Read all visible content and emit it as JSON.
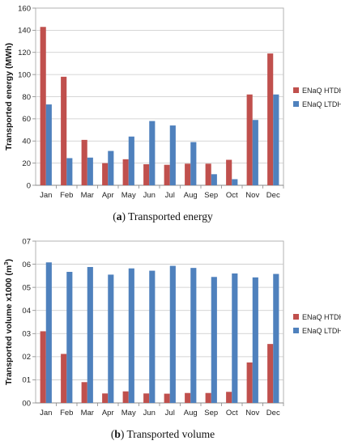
{
  "chart_data": [
    {
      "type": "bar",
      "caption_label": "a",
      "caption_text": "Transported energy",
      "ylabel": "Transported energy (MWh)",
      "ylim": [
        0,
        160
      ],
      "yticks": [
        "0",
        "20",
        "40",
        "60",
        "80",
        "100",
        "120",
        "140",
        "160"
      ],
      "categories": [
        "Jan",
        "Feb",
        "Mar",
        "Apr",
        "May",
        "Jun",
        "Jul",
        "Aug",
        "Sep",
        "Oct",
        "Nov",
        "Dec"
      ],
      "legend_position": "right",
      "grid": true,
      "series": [
        {
          "name": "ENaQ HTDH",
          "color": "#c0504d",
          "values": [
            143,
            98,
            41,
            20,
            23.5,
            19,
            18.5,
            19.5,
            19.5,
            23,
            82,
            119
          ]
        },
        {
          "name": "ENaQ LTDH",
          "color": "#4f81bd",
          "values": [
            73,
            24.5,
            25,
            31,
            44,
            58,
            54,
            39,
            10,
            5.5,
            59,
            82
          ]
        }
      ]
    },
    {
      "type": "bar",
      "caption_label": "b",
      "caption_text": "Transported volume",
      "ylabel": "Transported volume x1000 (m",
      "ylabel_sup": "3",
      "ylabel_end": ")",
      "ylim": [
        0,
        0.07
      ],
      "yticks": [
        "00",
        "01",
        "02",
        "03",
        "04",
        "05",
        "06",
        "07"
      ],
      "categories": [
        "Jan",
        "Feb",
        "Mar",
        "Apr",
        "May",
        "Jun",
        "Jul",
        "Aug",
        "Sep",
        "Oct",
        "Nov",
        "Dec"
      ],
      "legend_position": "right",
      "grid": true,
      "series": [
        {
          "name": "ENaQ HTDH",
          "color": "#c0504d",
          "values": [
            0.031,
            0.0212,
            0.009,
            0.0041,
            0.005,
            0.0041,
            0.004,
            0.0043,
            0.0043,
            0.0048,
            0.0175,
            0.0255
          ]
        },
        {
          "name": "ENaQ LTDH",
          "color": "#4f81bd",
          "values": [
            0.0608,
            0.0567,
            0.0588,
            0.0555,
            0.0582,
            0.0572,
            0.0593,
            0.0584,
            0.0545,
            0.056,
            0.0543,
            0.0558
          ]
        }
      ]
    }
  ]
}
